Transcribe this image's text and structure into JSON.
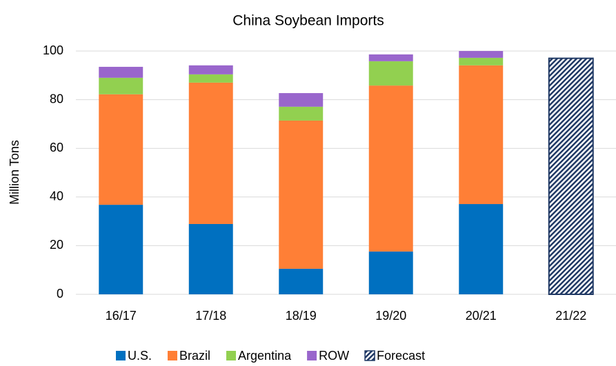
{
  "chart_data": {
    "type": "stacked_bar",
    "title": "China Soybean Imports",
    "y_label": "Million Tons",
    "categories": [
      "16/17",
      "17/18",
      "18/19",
      "19/20",
      "20/21",
      "21/22"
    ],
    "series": [
      {
        "name": "U.S.",
        "color": "#0070c0",
        "values": [
          36.8,
          28.9,
          10.5,
          17.6,
          37.1,
          null
        ]
      },
      {
        "name": "Brazil",
        "color": "#ff7f36",
        "values": [
          45.4,
          58.1,
          60.9,
          68.2,
          57.0,
          null
        ]
      },
      {
        "name": "Argentina",
        "color": "#92d050",
        "values": [
          6.8,
          3.4,
          5.7,
          10.0,
          3.1,
          null
        ]
      },
      {
        "name": "ROW",
        "color": "#9966cc",
        "values": [
          4.5,
          3.7,
          5.6,
          2.8,
          2.8,
          null
        ]
      },
      {
        "name": "Forecast",
        "color": "#1f3864",
        "pattern": "hatch",
        "values": [
          null,
          null,
          null,
          null,
          null,
          97
        ]
      }
    ],
    "ylim": [
      0,
      100
    ],
    "yticks": [
      0,
      20,
      40,
      60,
      80,
      100
    ],
    "grid": true,
    "legend": "bottom"
  }
}
